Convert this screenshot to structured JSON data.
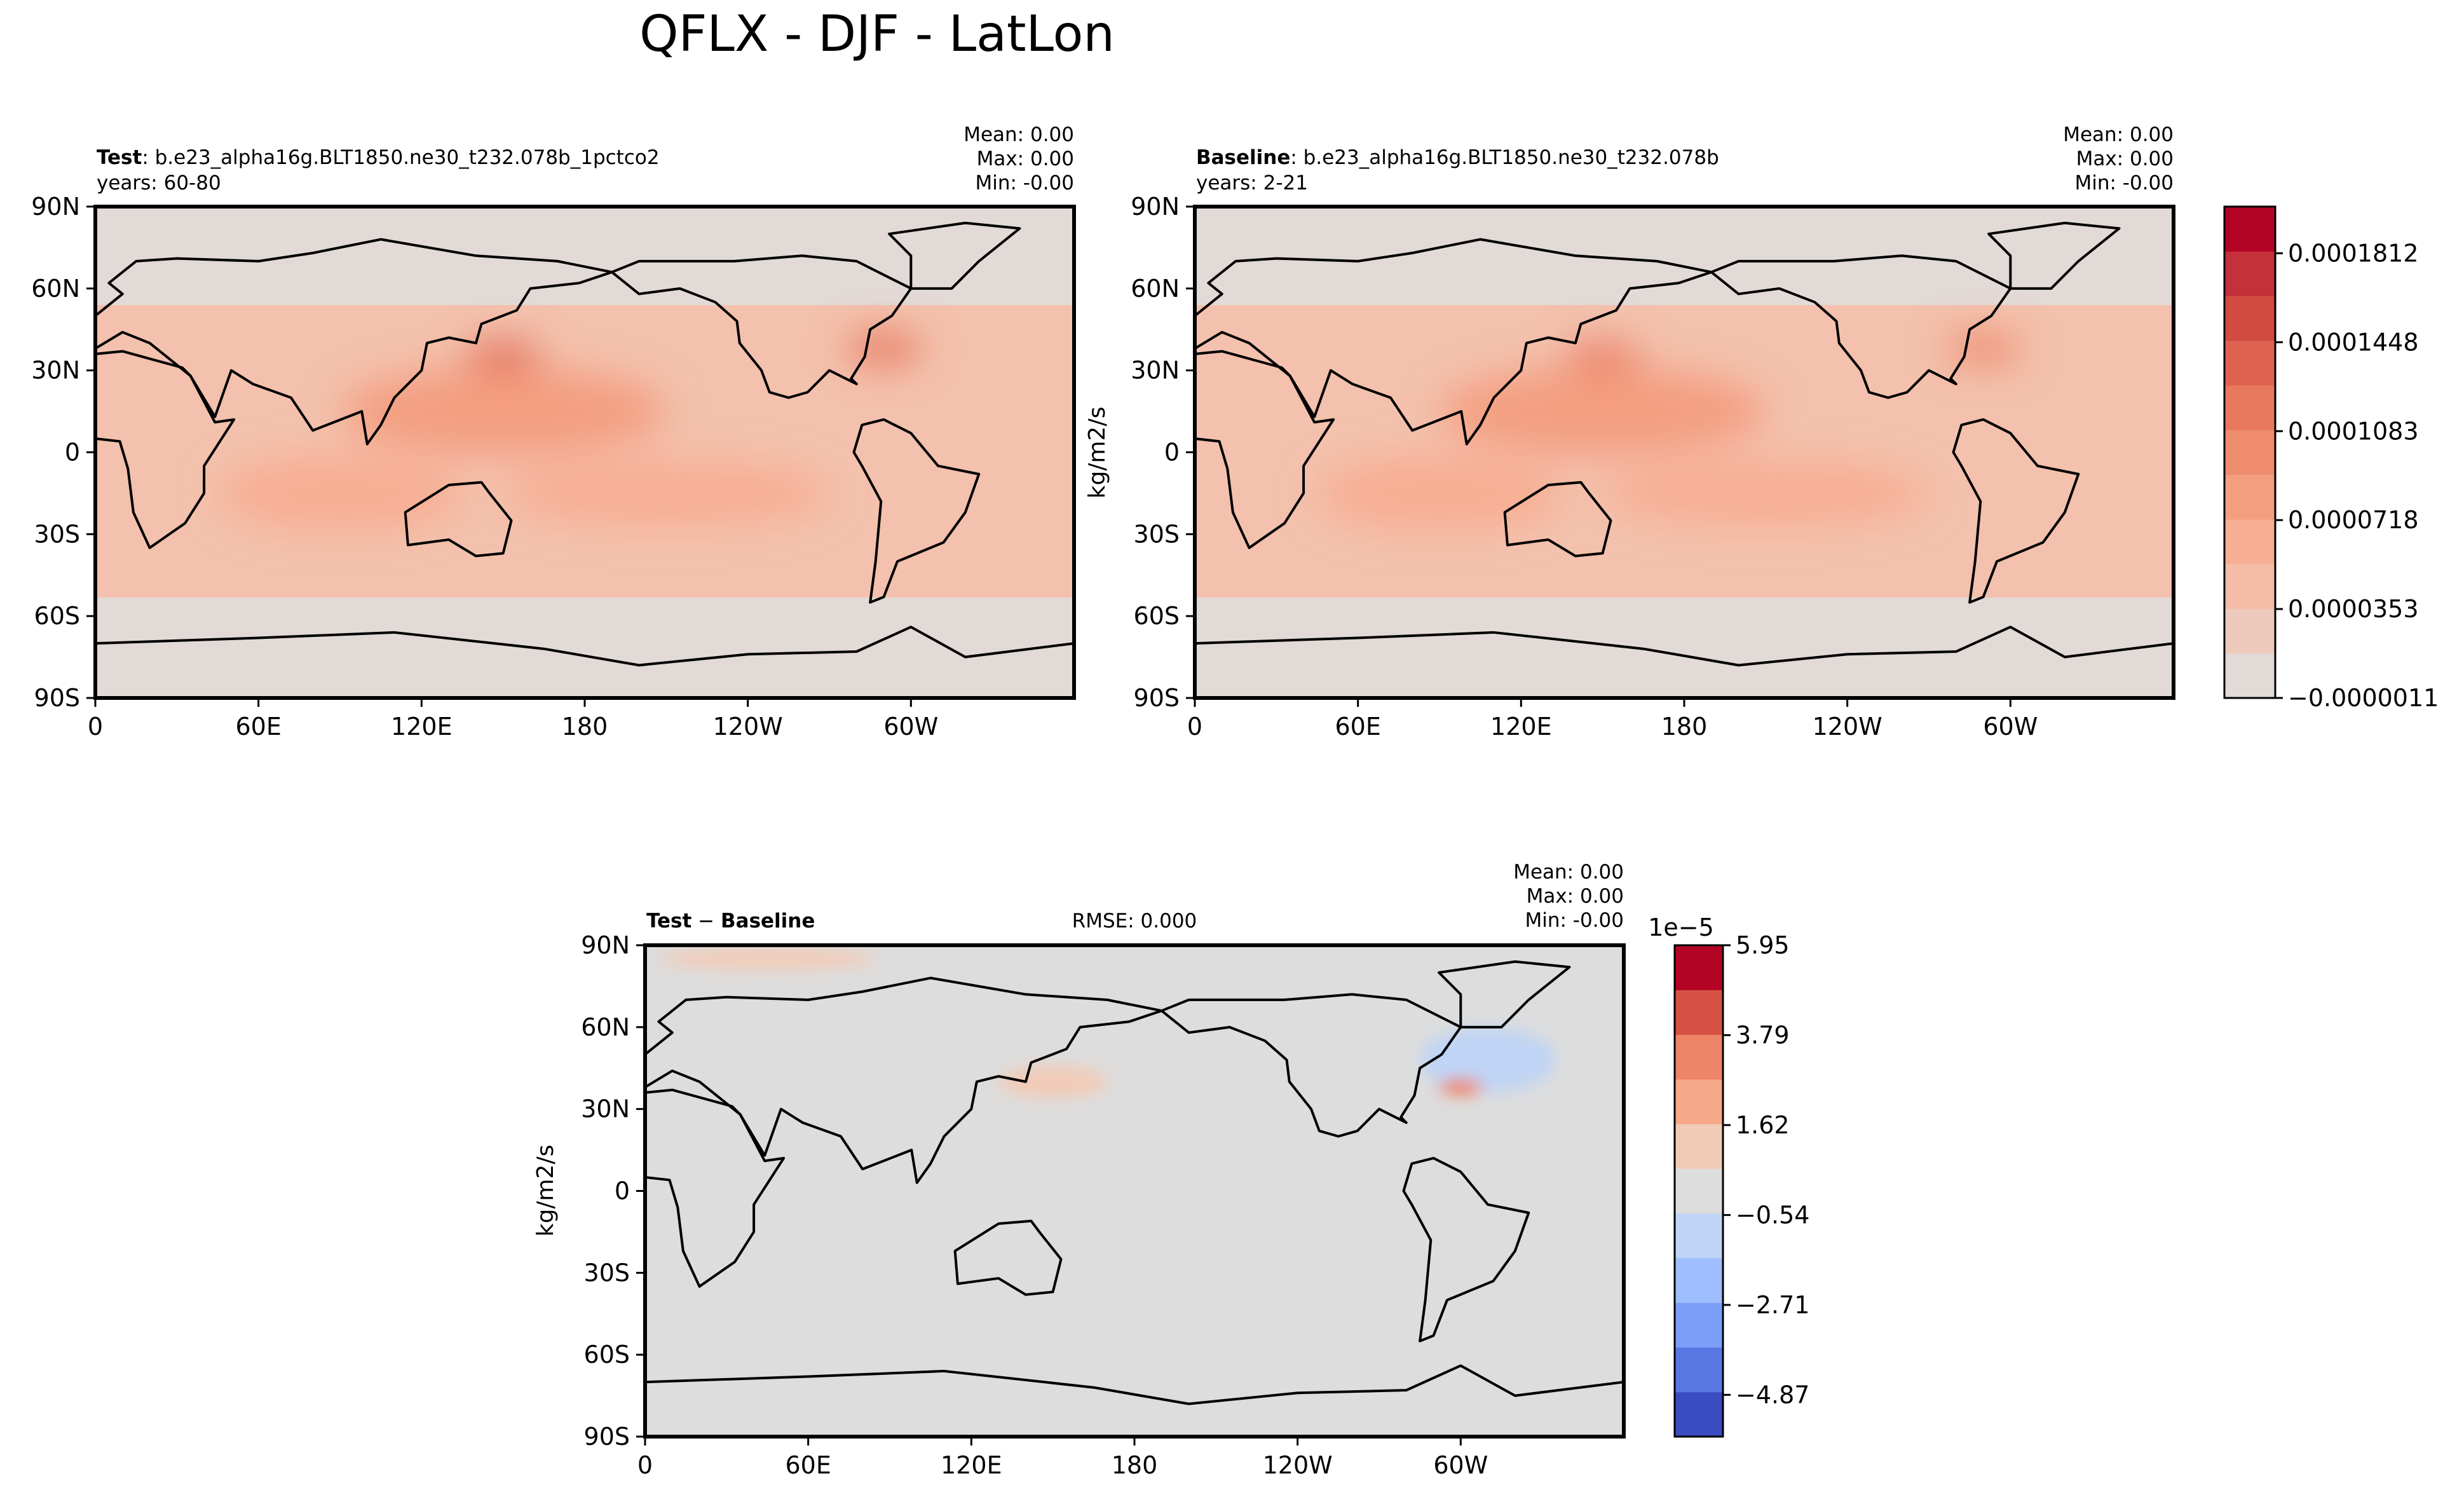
{
  "figure": {
    "title": "QFLX - DJF - LatLon"
  },
  "chart_data": [
    {
      "type": "heatmap",
      "panel": "test",
      "label_bold": "Test",
      "label_rest": ": b.e23_alpha16g.BLT1850.ne30_t232.078b_1pctco2",
      "years": "years: 60-80",
      "stats": [
        "Mean:  0.00",
        "Max:  0.00",
        "Min: -0.00"
      ],
      "ylabel": "",
      "xticks": [
        "0",
        "60E",
        "120E",
        "180",
        "120W",
        "60W"
      ],
      "yticks": [
        "90N",
        "60N",
        "30N",
        "0",
        "30S",
        "60S",
        "90S"
      ],
      "xlim": [
        0,
        360
      ],
      "ylim": [
        -90,
        90
      ],
      "colormap": "coolwarm",
      "zones": [
        {
          "lon": 150,
          "lat": 35,
          "rx": 14,
          "ry": 5,
          "level": 7
        },
        {
          "lon": 290,
          "lat": 38,
          "rx": 14,
          "ry": 6,
          "level": 6
        },
        {
          "lon": 150,
          "lat": 15,
          "rx": 60,
          "ry": 16,
          "level": 4
        },
        {
          "lon": 90,
          "lat": -15,
          "rx": 45,
          "ry": 14,
          "level": 3
        },
        {
          "lon": 210,
          "lat": -15,
          "rx": 60,
          "ry": 12,
          "level": 3
        }
      ]
    },
    {
      "type": "heatmap",
      "panel": "baseline",
      "label_bold": "Baseline",
      "label_rest": ": b.e23_alpha16g.BLT1850.ne30_t232.078b",
      "years": "years: 2-21",
      "stats": [
        "Mean:  0.00",
        "Max:  0.00",
        "Min: -0.00"
      ],
      "ylabel": "kg/m2/s",
      "xticks": [
        "0",
        "60E",
        "120E",
        "180",
        "120W",
        "60W"
      ],
      "yticks": [
        "90N",
        "60N",
        "30N",
        "0",
        "30S",
        "60S",
        "90S"
      ],
      "xlim": [
        0,
        360
      ],
      "ylim": [
        -90,
        90
      ],
      "colormap": "coolwarm",
      "colorbar": {
        "ticks": [
          "0.0001812",
          "0.0001448",
          "0.0001083",
          "0.0000718",
          "0.0000353",
          "−0.0000011"
        ],
        "levels": 11,
        "colors": [
          "#e2dad7",
          "#eecabd",
          "#f5bda8",
          "#f7ae93",
          "#f49e80",
          "#ef8c6e",
          "#e8795e",
          "#de6350",
          "#d24b40",
          "#c4313a",
          "#b40426"
        ]
      },
      "zones": [
        {
          "lon": 150,
          "lat": 35,
          "rx": 14,
          "ry": 5,
          "level": 6
        },
        {
          "lon": 290,
          "lat": 38,
          "rx": 14,
          "ry": 6,
          "level": 5
        },
        {
          "lon": 150,
          "lat": 15,
          "rx": 60,
          "ry": 16,
          "level": 4
        },
        {
          "lon": 90,
          "lat": -15,
          "rx": 45,
          "ry": 14,
          "level": 3
        },
        {
          "lon": 210,
          "lat": -15,
          "rx": 60,
          "ry": 12,
          "level": 3
        }
      ]
    },
    {
      "type": "heatmap",
      "panel": "difference",
      "label_a": "Test",
      "label_sep": " − ",
      "label_b": "Baseline",
      "rmse": "RMSE: 0.000",
      "stats": [
        "Mean:  0.00",
        "Max:  0.00",
        "Min: -0.00"
      ],
      "ylabel": "kg/m2/s",
      "xticks": [
        "0",
        "60E",
        "120E",
        "180",
        "120W",
        "60W"
      ],
      "yticks": [
        "90N",
        "60N",
        "30N",
        "0",
        "30S",
        "60S",
        "90S"
      ],
      "xlim": [
        0,
        360
      ],
      "ylim": [
        -90,
        90
      ],
      "colormap": "coolwarm",
      "colorbar": {
        "offset": "1e−5",
        "ticks": [
          "5.95",
          "3.79",
          "1.62",
          "−0.54",
          "−2.71",
          "−4.87"
        ],
        "colors": [
          "#3b4cc0",
          "#5977e3",
          "#7b9ff9",
          "#9ebeff",
          "#c0d4f5",
          "#dddddd",
          "#f2cbb7",
          "#f7a889",
          "#ee8468",
          "#d65244",
          "#b40426"
        ]
      },
      "zones": [
        {
          "lon": 310,
          "lat": 48,
          "rx": 25,
          "ry": 12,
          "level": -1
        },
        {
          "lon": 300,
          "lat": 38,
          "rx": 8,
          "ry": 3,
          "level": 3
        },
        {
          "lon": 150,
          "lat": 40,
          "rx": 20,
          "ry": 6,
          "level": 1
        },
        {
          "lon": 45,
          "lat": 85,
          "rx": 40,
          "ry": 4,
          "level": 1
        }
      ]
    }
  ]
}
